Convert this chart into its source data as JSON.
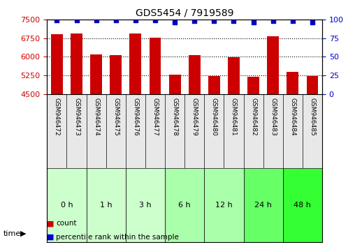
{
  "title": "GDS5454 / 7919589",
  "samples": [
    "GSM946472",
    "GSM946473",
    "GSM946474",
    "GSM946475",
    "GSM946476",
    "GSM946477",
    "GSM946478",
    "GSM946479",
    "GSM946480",
    "GSM946481",
    "GSM946482",
    "GSM946483",
    "GSM946484",
    "GSM946485"
  ],
  "counts": [
    6920,
    6940,
    6100,
    6080,
    6950,
    6780,
    5270,
    6060,
    5220,
    5970,
    5190,
    6840,
    5380,
    5230
  ],
  "percentile_ranks": [
    99,
    99,
    99,
    99,
    99,
    99,
    97,
    98,
    98,
    98,
    97,
    98,
    98,
    97
  ],
  "time_groups": [
    {
      "label": "0 h",
      "samples": [
        "GSM946472",
        "GSM946473"
      ],
      "color": "#ccffcc"
    },
    {
      "label": "1 h",
      "samples": [
        "GSM946474",
        "GSM946475"
      ],
      "color": "#ccffcc"
    },
    {
      "label": "3 h",
      "samples": [
        "GSM946476",
        "GSM946477"
      ],
      "color": "#ccffcc"
    },
    {
      "label": "6 h",
      "samples": [
        "GSM946478",
        "GSM946479"
      ],
      "color": "#aaffaa"
    },
    {
      "label": "12 h",
      "samples": [
        "GSM946480",
        "GSM946481"
      ],
      "color": "#aaffaa"
    },
    {
      "label": "24 h",
      "samples": [
        "GSM946482",
        "GSM946483"
      ],
      "color": "#66ff66"
    },
    {
      "label": "48 h",
      "samples": [
        "GSM946484",
        "GSM946485"
      ],
      "color": "#33ff33"
    }
  ],
  "ylim": [
    4500,
    7500
  ],
  "yticks": [
    4500,
    5250,
    6000,
    6750,
    7500
  ],
  "right_yticks": [
    0,
    25,
    50,
    75,
    100
  ],
  "bar_color": "#cc0000",
  "dot_color": "#0000cc",
  "grid_color": "#000000",
  "bg_color": "#ffffff",
  "bar_width": 0.6,
  "time_label": "time"
}
